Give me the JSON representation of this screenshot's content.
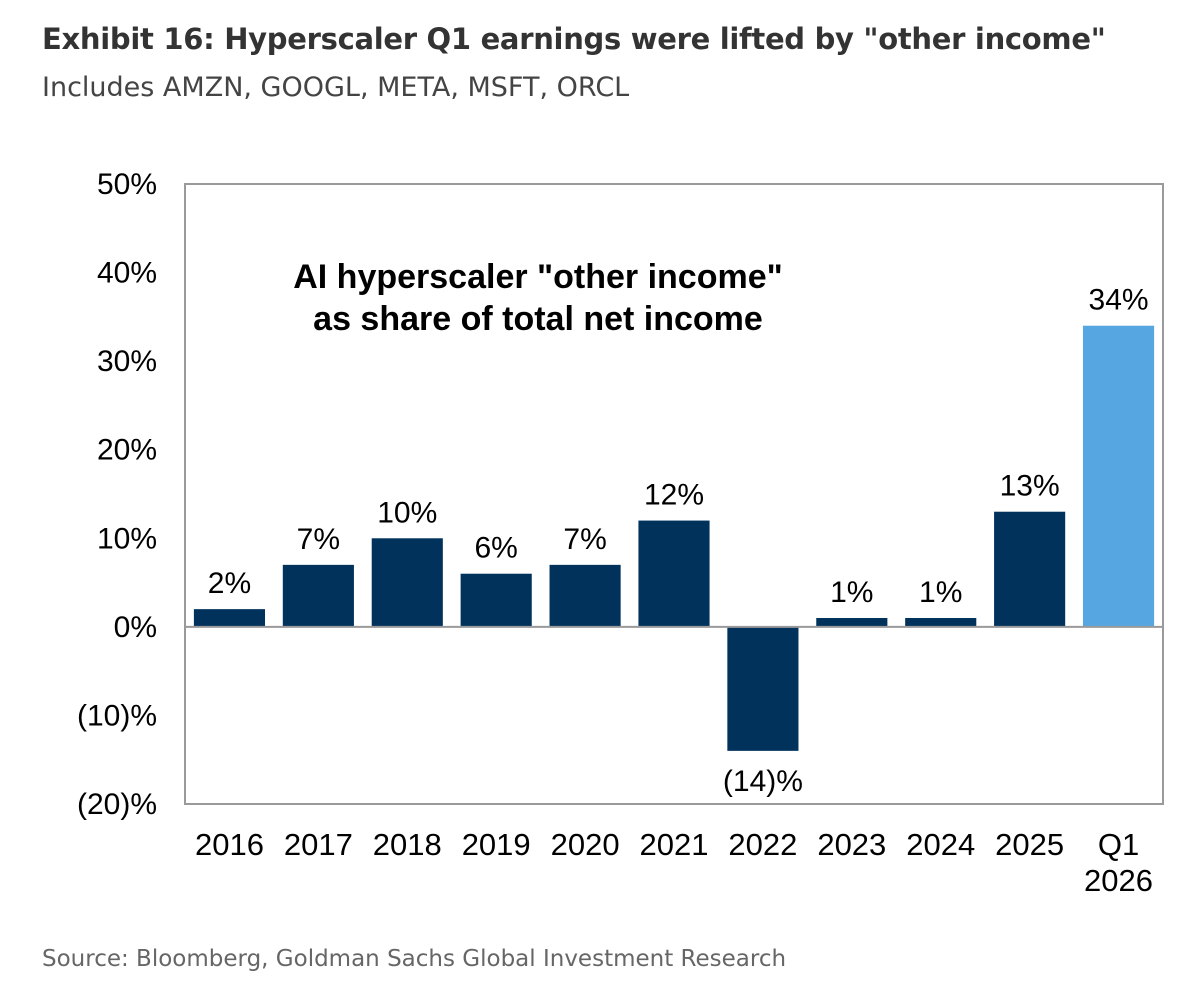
{
  "title": "Exhibit 16: Hyperscaler Q1 earnings were lifted by \"other income\"",
  "subtitle": "Includes AMZN, GOOGL, META, MSFT, ORCL",
  "source": "Source: Bloomberg, Goldman Sachs Global Investment Research",
  "colors": {
    "bar": "#00325c",
    "highlight": "#56a6e2",
    "axis": "#999999"
  },
  "chart_data": {
    "type": "bar",
    "annotation": [
      "AI hyperscaler \"other income\"",
      "as share of total net income"
    ],
    "categories": [
      [
        "2016"
      ],
      [
        "2017"
      ],
      [
        "2018"
      ],
      [
        "2019"
      ],
      [
        "2020"
      ],
      [
        "2021"
      ],
      [
        "2022"
      ],
      [
        "2023"
      ],
      [
        "2024"
      ],
      [
        "2025"
      ],
      [
        "Q1",
        "2026"
      ]
    ],
    "values": [
      2,
      7,
      10,
      6,
      7,
      12,
      -14,
      1,
      1,
      13,
      34
    ],
    "value_labels": [
      "2%",
      "7%",
      "10%",
      "6%",
      "7%",
      "12%",
      "(14)%",
      "1%",
      "1%",
      "13%",
      "34%"
    ],
    "highlight_index": 10,
    "ylim": [
      -20,
      50
    ],
    "yticks": [
      50,
      40,
      30,
      20,
      10,
      0,
      -10,
      -20
    ],
    "ytick_labels": [
      "50%",
      "40%",
      "30%",
      "20%",
      "10%",
      "0%",
      "(10)%",
      "(20)%"
    ],
    "grid": false
  }
}
